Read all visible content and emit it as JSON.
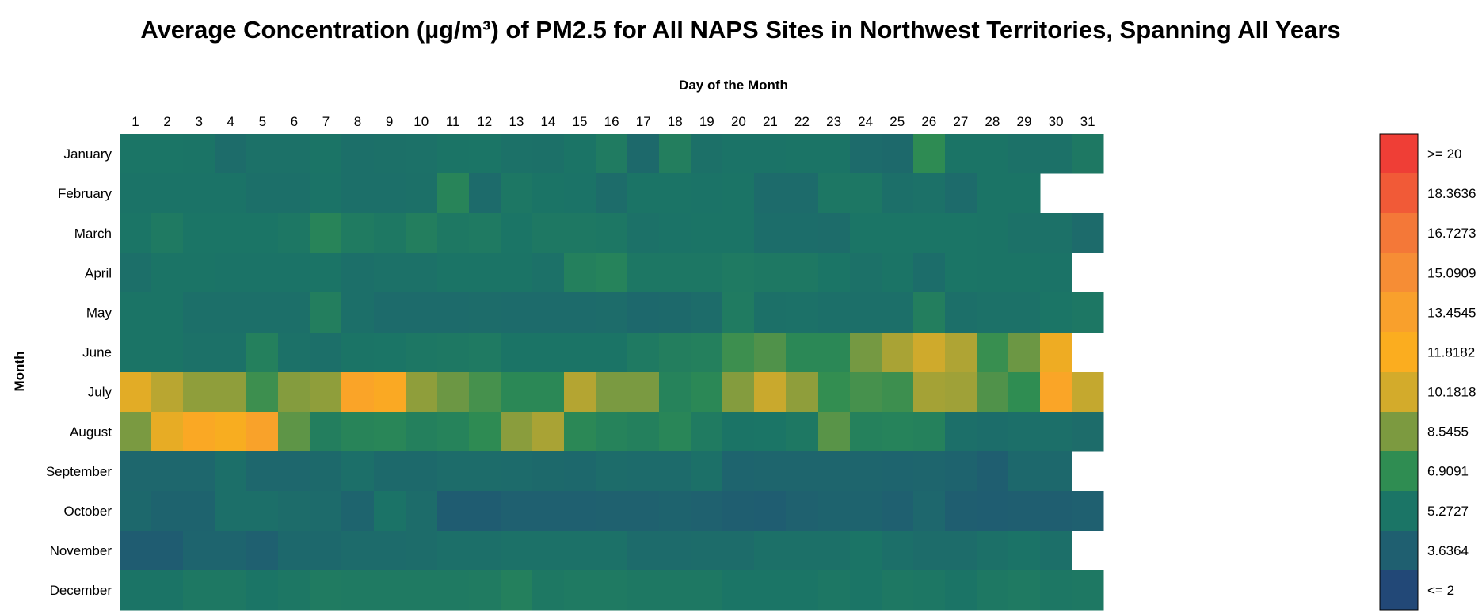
{
  "chart_data": {
    "type": "heatmap",
    "title": "Average Concentration (µg/m³) of PM2.5 for All NAPS Sites in Northwest Territories, Spanning All Years",
    "xlabel": "Day of the Month",
    "ylabel": "Month",
    "x": [
      "1",
      "2",
      "3",
      "4",
      "5",
      "6",
      "7",
      "8",
      "9",
      "10",
      "11",
      "12",
      "13",
      "14",
      "15",
      "16",
      "17",
      "18",
      "19",
      "20",
      "21",
      "22",
      "23",
      "24",
      "25",
      "26",
      "27",
      "28",
      "29",
      "30",
      "31"
    ],
    "y": [
      "January",
      "February",
      "March",
      "April",
      "May",
      "June",
      "July",
      "August",
      "September",
      "October",
      "November",
      "December"
    ],
    "zlim": [
      2,
      20
    ],
    "colorbar": {
      "labels": [
        ">= 20",
        "18.3636",
        "16.7273",
        "15.0909",
        "13.4545",
        "11.8182",
        "10.1818",
        "8.5455",
        "6.9091",
        "5.2727",
        "3.6364",
        "<= 2"
      ],
      "colors": [
        "#ef3e36",
        "#f15a37",
        "#f47838",
        "#f68d35",
        "#f9a02c",
        "#fbad1f",
        "#d3ab2b",
        "#7c9a40",
        "#2f8d52",
        "#1b7566",
        "#1f5f70",
        "#224877"
      ]
    },
    "values": [
      [
        5.3,
        5.3,
        5.2,
        4.6,
        5.0,
        5.0,
        5.2,
        4.8,
        4.9,
        5.0,
        5.2,
        5.3,
        5.0,
        4.9,
        5.2,
        5.7,
        4.4,
        5.9,
        4.9,
        5.1,
        5.1,
        5.2,
        5.2,
        4.5,
        4.4,
        6.8,
        5.2,
        5.2,
        5.0,
        5.0,
        5.5
      ],
      [
        5.1,
        5.1,
        5.1,
        5.1,
        4.8,
        4.8,
        5.1,
        4.8,
        4.8,
        4.9,
        6.3,
        4.5,
        5.4,
        5.2,
        5.1,
        4.6,
        5.2,
        5.2,
        5.1,
        5.2,
        4.5,
        4.5,
        5.4,
        5.4,
        4.8,
        5.0,
        4.5,
        5.2,
        5.2,
        null,
        null
      ],
      [
        5.3,
        5.6,
        5.3,
        5.3,
        5.3,
        5.4,
        6.3,
        5.7,
        5.5,
        5.9,
        5.5,
        5.6,
        5.3,
        5.5,
        5.5,
        5.4,
        5.0,
        5.1,
        5.2,
        5.2,
        4.7,
        4.7,
        4.6,
        5.3,
        5.3,
        5.3,
        5.3,
        5.2,
        5.0,
        5.0,
        4.5
      ],
      [
        4.8,
        5.2,
        5.2,
        5.1,
        5.1,
        5.1,
        5.2,
        4.8,
        5.0,
        5.0,
        5.2,
        5.2,
        5.2,
        5.0,
        6.0,
        6.2,
        5.4,
        5.4,
        5.4,
        5.6,
        5.5,
        5.5,
        5.3,
        5.0,
        5.2,
        4.7,
        5.3,
        5.2,
        5.2,
        5.1,
        null
      ],
      [
        5.2,
        5.2,
        4.8,
        4.8,
        4.8,
        4.8,
        5.9,
        4.8,
        4.5,
        4.5,
        4.5,
        4.6,
        4.5,
        4.5,
        4.5,
        4.6,
        4.3,
        4.4,
        4.6,
        5.7,
        4.9,
        5.0,
        4.8,
        4.8,
        4.8,
        5.9,
        4.8,
        5.0,
        5.0,
        5.3,
        5.4
      ],
      [
        5.2,
        5.2,
        5.0,
        5.0,
        6.0,
        5.0,
        4.8,
        5.2,
        5.3,
        5.4,
        5.5,
        5.6,
        5.2,
        5.2,
        5.2,
        5.2,
        5.6,
        5.9,
        6.0,
        7.2,
        7.6,
        6.6,
        6.6,
        8.4,
        9.4,
        10.1,
        9.5,
        7.1,
        8.2,
        11.3,
        null
      ],
      [
        10.8,
        9.7,
        8.9,
        8.9,
        7.2,
        8.7,
        8.9,
        13.0,
        12.3,
        8.9,
        8.2,
        7.4,
        6.6,
        6.6,
        9.6,
        8.5,
        8.5,
        6.2,
        6.6,
        8.7,
        10.0,
        8.9,
        7.0,
        7.4,
        7.2,
        9.3,
        9.2,
        7.6,
        6.9,
        12.8,
        9.9
      ],
      [
        8.5,
        11.0,
        12.4,
        11.7,
        13.2,
        7.9,
        5.9,
        6.3,
        6.4,
        6.0,
        6.2,
        6.8,
        8.8,
        9.4,
        6.6,
        6.2,
        6.0,
        6.4,
        5.7,
        5.2,
        5.3,
        5.5,
        7.8,
        6.1,
        6.2,
        6.1,
        4.8,
        4.7,
        4.8,
        4.8,
        4.6
      ],
      [
        4.2,
        4.2,
        4.2,
        4.8,
        4.2,
        4.2,
        4.4,
        4.8,
        4.4,
        4.4,
        4.6,
        4.6,
        4.5,
        4.4,
        4.3,
        4.6,
        4.5,
        4.5,
        4.9,
        4.0,
        4.1,
        4.1,
        4.1,
        4.1,
        4.0,
        4.1,
        3.9,
        3.6,
        4.3,
        4.3,
        null
      ],
      [
        4.3,
        3.9,
        3.9,
        4.8,
        4.8,
        4.6,
        4.5,
        4.0,
        5.1,
        4.6,
        3.4,
        3.4,
        3.7,
        3.7,
        3.7,
        3.8,
        3.8,
        3.9,
        3.8,
        3.6,
        3.5,
        3.8,
        3.9,
        3.9,
        3.7,
        4.2,
        3.6,
        3.5,
        3.6,
        3.6,
        3.7
      ],
      [
        3.4,
        3.4,
        4.0,
        4.0,
        3.7,
        4.3,
        4.3,
        4.5,
        4.5,
        4.6,
        4.8,
        4.8,
        5.0,
        5.0,
        5.0,
        5.0,
        4.5,
        4.5,
        4.6,
        4.6,
        4.9,
        4.9,
        4.9,
        5.2,
        4.8,
        4.6,
        4.6,
        4.9,
        5.1,
        4.8,
        null
      ],
      [
        5.2,
        5.2,
        5.5,
        5.5,
        5.3,
        5.4,
        5.7,
        5.6,
        5.6,
        5.6,
        5.6,
        5.7,
        6.0,
        5.5,
        5.6,
        5.6,
        5.5,
        5.5,
        5.5,
        5.3,
        5.3,
        5.3,
        5.4,
        5.3,
        5.5,
        5.4,
        5.2,
        5.5,
        5.6,
        5.4,
        5.5
      ]
    ]
  }
}
